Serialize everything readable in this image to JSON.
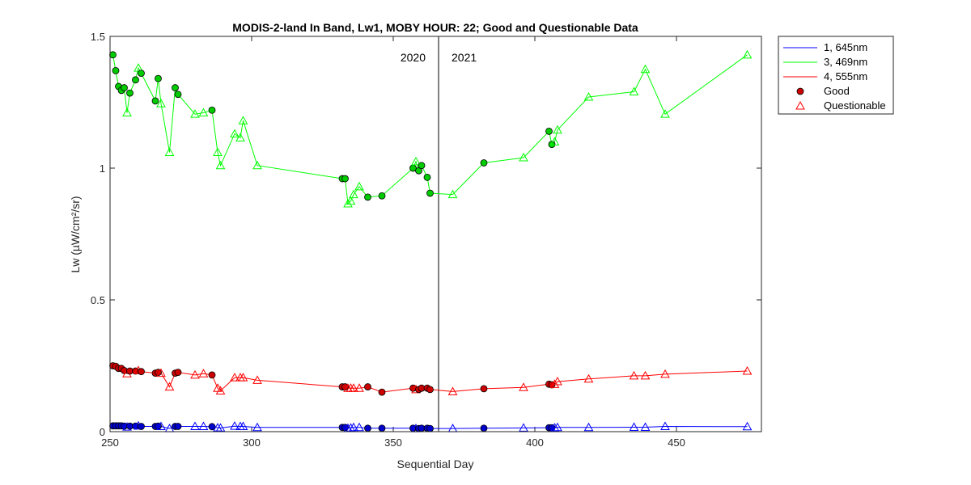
{
  "chart_data": {
    "type": "line",
    "title": "MODIS-2-land In Band,  Lw1, MOBY HOUR: 22;  Good and Questionable Data",
    "xlabel": "Sequential Day",
    "ylabel": "Lw (µW/cm²/sr)",
    "xlim": [
      250,
      480
    ],
    "ylim": [
      0,
      1.5
    ],
    "xticks": [
      250,
      300,
      350,
      400,
      450
    ],
    "yticks": [
      0,
      0.5,
      1,
      1.5
    ],
    "xtick_labels": [
      "250",
      "300",
      "350",
      "400",
      "450"
    ],
    "ytick_labels": [
      "0",
      "0.5",
      "1",
      "1.5"
    ],
    "grid": false,
    "legend_position": "outside-top-right",
    "divider": {
      "x": 366,
      "left_label": "2020",
      "right_label": "2021"
    },
    "legend": [
      {
        "label": "1, 645nm",
        "kind": "line",
        "color": "#0000ff"
      },
      {
        "label": "3, 469nm",
        "kind": "line",
        "color": "#00ff00"
      },
      {
        "label": "4, 555nm",
        "kind": "line",
        "color": "#ff0000"
      },
      {
        "label": "Good",
        "kind": "good-marker",
        "color": "#cc0000"
      },
      {
        "label": "Questionable",
        "kind": "questionable-marker",
        "color": "#ff0000"
      }
    ],
    "series": [
      {
        "name": "3, 469nm",
        "color": "#00ff00",
        "points": [
          {
            "x": 251,
            "y": 1.43,
            "q": "G"
          },
          {
            "x": 252,
            "y": 1.37,
            "q": "G"
          },
          {
            "x": 253,
            "y": 1.31,
            "q": "G"
          },
          {
            "x": 254,
            "y": 1.295,
            "q": "G"
          },
          {
            "x": 255,
            "y": 1.305,
            "q": "G"
          },
          {
            "x": 256,
            "y": 1.21,
            "q": "Q"
          },
          {
            "x": 257,
            "y": 1.285,
            "q": "G"
          },
          {
            "x": 259,
            "y": 1.335,
            "q": "G"
          },
          {
            "x": 260,
            "y": 1.38,
            "q": "Q"
          },
          {
            "x": 261,
            "y": 1.36,
            "q": "G"
          },
          {
            "x": 266,
            "y": 1.255,
            "q": "G"
          },
          {
            "x": 267,
            "y": 1.34,
            "q": "G"
          },
          {
            "x": 268,
            "y": 1.245,
            "q": "Q"
          },
          {
            "x": 271,
            "y": 1.06,
            "q": "Q"
          },
          {
            "x": 273,
            "y": 1.305,
            "q": "G"
          },
          {
            "x": 274,
            "y": 1.28,
            "q": "G"
          },
          {
            "x": 280,
            "y": 1.205,
            "q": "Q"
          },
          {
            "x": 283,
            "y": 1.21,
            "q": "Q"
          },
          {
            "x": 286,
            "y": 1.22,
            "q": "G"
          },
          {
            "x": 288,
            "y": 1.06,
            "q": "Q"
          },
          {
            "x": 289,
            "y": 1.01,
            "q": "Q"
          },
          {
            "x": 294,
            "y": 1.13,
            "q": "Q"
          },
          {
            "x": 296,
            "y": 1.115,
            "q": "Q"
          },
          {
            "x": 297,
            "y": 1.18,
            "q": "Q"
          },
          {
            "x": 302,
            "y": 1.01,
            "q": "Q"
          },
          {
            "x": 332,
            "y": 0.96,
            "q": "G"
          },
          {
            "x": 333,
            "y": 0.96,
            "q": "G"
          },
          {
            "x": 334,
            "y": 0.865,
            "q": "Q"
          },
          {
            "x": 335,
            "y": 0.875,
            "q": "Q"
          },
          {
            "x": 336,
            "y": 0.9,
            "q": "Q"
          },
          {
            "x": 338,
            "y": 0.93,
            "q": "Q"
          },
          {
            "x": 341,
            "y": 0.89,
            "q": "G"
          },
          {
            "x": 346,
            "y": 0.895,
            "q": "G"
          },
          {
            "x": 357,
            "y": 1.0,
            "q": "G"
          },
          {
            "x": 358,
            "y": 1.025,
            "q": "Q"
          },
          {
            "x": 359,
            "y": 0.99,
            "q": "G"
          },
          {
            "x": 360,
            "y": 1.01,
            "q": "G"
          },
          {
            "x": 362,
            "y": 0.965,
            "q": "G"
          },
          {
            "x": 363,
            "y": 0.905,
            "q": "G"
          },
          {
            "x": 371,
            "y": 0.9,
            "q": "Q"
          },
          {
            "x": 382,
            "y": 1.02,
            "q": "G"
          },
          {
            "x": 396,
            "y": 1.04,
            "q": "Q"
          },
          {
            "x": 405,
            "y": 1.14,
            "q": "G"
          },
          {
            "x": 406,
            "y": 1.09,
            "q": "G"
          },
          {
            "x": 407,
            "y": 1.1,
            "q": "Q"
          },
          {
            "x": 408,
            "y": 1.145,
            "q": "Q"
          },
          {
            "x": 419,
            "y": 1.27,
            "q": "Q"
          },
          {
            "x": 435,
            "y": 1.29,
            "q": "Q"
          },
          {
            "x": 439,
            "y": 1.375,
            "q": "Q"
          },
          {
            "x": 446,
            "y": 1.205,
            "q": "Q"
          },
          {
            "x": 475,
            "y": 1.43,
            "q": "Q"
          }
        ]
      },
      {
        "name": "4, 555nm",
        "color": "#ff0000",
        "points": [
          {
            "x": 251,
            "y": 0.25,
            "q": "G"
          },
          {
            "x": 252,
            "y": 0.248,
            "q": "G"
          },
          {
            "x": 253,
            "y": 0.24,
            "q": "G"
          },
          {
            "x": 254,
            "y": 0.24,
            "q": "G"
          },
          {
            "x": 255,
            "y": 0.232,
            "q": "G"
          },
          {
            "x": 256,
            "y": 0.22,
            "q": "Q"
          },
          {
            "x": 257,
            "y": 0.23,
            "q": "G"
          },
          {
            "x": 259,
            "y": 0.23,
            "q": "G"
          },
          {
            "x": 260,
            "y": 0.232,
            "q": "Q"
          },
          {
            "x": 261,
            "y": 0.228,
            "q": "G"
          },
          {
            "x": 266,
            "y": 0.222,
            "q": "G"
          },
          {
            "x": 267,
            "y": 0.225,
            "q": "G"
          },
          {
            "x": 268,
            "y": 0.222,
            "q": "Q"
          },
          {
            "x": 271,
            "y": 0.17,
            "q": "Q"
          },
          {
            "x": 273,
            "y": 0.222,
            "q": "G"
          },
          {
            "x": 274,
            "y": 0.225,
            "q": "G"
          },
          {
            "x": 280,
            "y": 0.215,
            "q": "Q"
          },
          {
            "x": 283,
            "y": 0.22,
            "q": "Q"
          },
          {
            "x": 286,
            "y": 0.215,
            "q": "G"
          },
          {
            "x": 288,
            "y": 0.165,
            "q": "Q"
          },
          {
            "x": 289,
            "y": 0.155,
            "q": "Q"
          },
          {
            "x": 294,
            "y": 0.205,
            "q": "Q"
          },
          {
            "x": 296,
            "y": 0.205,
            "q": "Q"
          },
          {
            "x": 297,
            "y": 0.205,
            "q": "Q"
          },
          {
            "x": 302,
            "y": 0.195,
            "q": "Q"
          },
          {
            "x": 332,
            "y": 0.17,
            "q": "G"
          },
          {
            "x": 333,
            "y": 0.17,
            "q": "G"
          },
          {
            "x": 334,
            "y": 0.165,
            "q": "Q"
          },
          {
            "x": 335,
            "y": 0.165,
            "q": "Q"
          },
          {
            "x": 336,
            "y": 0.165,
            "q": "Q"
          },
          {
            "x": 338,
            "y": 0.165,
            "q": "Q"
          },
          {
            "x": 341,
            "y": 0.17,
            "q": "G"
          },
          {
            "x": 346,
            "y": 0.15,
            "q": "G"
          },
          {
            "x": 357,
            "y": 0.165,
            "q": "G"
          },
          {
            "x": 358,
            "y": 0.16,
            "q": "Q"
          },
          {
            "x": 359,
            "y": 0.16,
            "q": "G"
          },
          {
            "x": 360,
            "y": 0.165,
            "q": "G"
          },
          {
            "x": 362,
            "y": 0.165,
            "q": "G"
          },
          {
            "x": 363,
            "y": 0.16,
            "q": "G"
          },
          {
            "x": 371,
            "y": 0.152,
            "q": "Q"
          },
          {
            "x": 382,
            "y": 0.163,
            "q": "G"
          },
          {
            "x": 396,
            "y": 0.168,
            "q": "Q"
          },
          {
            "x": 405,
            "y": 0.18,
            "q": "G"
          },
          {
            "x": 406,
            "y": 0.178,
            "q": "G"
          },
          {
            "x": 407,
            "y": 0.18,
            "q": "Q"
          },
          {
            "x": 408,
            "y": 0.19,
            "q": "Q"
          },
          {
            "x": 419,
            "y": 0.2,
            "q": "Q"
          },
          {
            "x": 435,
            "y": 0.212,
            "q": "Q"
          },
          {
            "x": 439,
            "y": 0.212,
            "q": "Q"
          },
          {
            "x": 446,
            "y": 0.218,
            "q": "Q"
          },
          {
            "x": 475,
            "y": 0.23,
            "q": "Q"
          }
        ]
      },
      {
        "name": "1, 645nm",
        "color": "#0000ff",
        "points": [
          {
            "x": 251,
            "y": 0.022,
            "q": "G"
          },
          {
            "x": 252,
            "y": 0.022,
            "q": "G"
          },
          {
            "x": 253,
            "y": 0.022,
            "q": "G"
          },
          {
            "x": 254,
            "y": 0.022,
            "q": "G"
          },
          {
            "x": 255,
            "y": 0.021,
            "q": "G"
          },
          {
            "x": 256,
            "y": 0.018,
            "q": "Q"
          },
          {
            "x": 257,
            "y": 0.021,
            "q": "G"
          },
          {
            "x": 259,
            "y": 0.021,
            "q": "G"
          },
          {
            "x": 260,
            "y": 0.022,
            "q": "Q"
          },
          {
            "x": 261,
            "y": 0.02,
            "q": "G"
          },
          {
            "x": 266,
            "y": 0.02,
            "q": "G"
          },
          {
            "x": 267,
            "y": 0.021,
            "q": "G"
          },
          {
            "x": 268,
            "y": 0.02,
            "q": "Q"
          },
          {
            "x": 271,
            "y": 0.012,
            "q": "Q"
          },
          {
            "x": 273,
            "y": 0.02,
            "q": "G"
          },
          {
            "x": 274,
            "y": 0.02,
            "q": "G"
          },
          {
            "x": 280,
            "y": 0.02,
            "q": "Q"
          },
          {
            "x": 283,
            "y": 0.02,
            "q": "Q"
          },
          {
            "x": 286,
            "y": 0.019,
            "q": "G"
          },
          {
            "x": 288,
            "y": 0.015,
            "q": "Q"
          },
          {
            "x": 289,
            "y": 0.014,
            "q": "Q"
          },
          {
            "x": 294,
            "y": 0.021,
            "q": "Q"
          },
          {
            "x": 296,
            "y": 0.02,
            "q": "Q"
          },
          {
            "x": 297,
            "y": 0.02,
            "q": "Q"
          },
          {
            "x": 302,
            "y": 0.016,
            "q": "Q"
          },
          {
            "x": 332,
            "y": 0.016,
            "q": "G"
          },
          {
            "x": 333,
            "y": 0.016,
            "q": "G"
          },
          {
            "x": 334,
            "y": 0.013,
            "q": "Q"
          },
          {
            "x": 335,
            "y": 0.014,
            "q": "Q"
          },
          {
            "x": 336,
            "y": 0.016,
            "q": "Q"
          },
          {
            "x": 338,
            "y": 0.016,
            "q": "Q"
          },
          {
            "x": 341,
            "y": 0.013,
            "q": "G"
          },
          {
            "x": 346,
            "y": 0.013,
            "q": "G"
          },
          {
            "x": 357,
            "y": 0.013,
            "q": "G"
          },
          {
            "x": 358,
            "y": 0.012,
            "q": "Q"
          },
          {
            "x": 359,
            "y": 0.012,
            "q": "G"
          },
          {
            "x": 360,
            "y": 0.013,
            "q": "G"
          },
          {
            "x": 362,
            "y": 0.013,
            "q": "G"
          },
          {
            "x": 363,
            "y": 0.012,
            "q": "G"
          },
          {
            "x": 371,
            "y": 0.012,
            "q": "Q"
          },
          {
            "x": 382,
            "y": 0.013,
            "q": "G"
          },
          {
            "x": 396,
            "y": 0.014,
            "q": "Q"
          },
          {
            "x": 405,
            "y": 0.015,
            "q": "G"
          },
          {
            "x": 406,
            "y": 0.015,
            "q": "G"
          },
          {
            "x": 407,
            "y": 0.015,
            "q": "Q"
          },
          {
            "x": 408,
            "y": 0.016,
            "q": "Q"
          },
          {
            "x": 419,
            "y": 0.016,
            "q": "Q"
          },
          {
            "x": 435,
            "y": 0.017,
            "q": "Q"
          },
          {
            "x": 439,
            "y": 0.017,
            "q": "Q"
          },
          {
            "x": 446,
            "y": 0.02,
            "q": "Q"
          },
          {
            "x": 475,
            "y": 0.019,
            "q": "Q"
          }
        ]
      }
    ]
  }
}
